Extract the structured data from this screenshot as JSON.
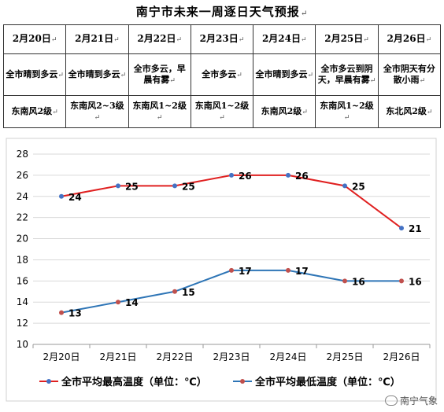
{
  "title": "南宁市未来一周逐日天气预报",
  "paragraph_mark": "↵",
  "forecast": {
    "dates": [
      "2月20日",
      "2月21日",
      "2月22日",
      "2月23日",
      "2月24日",
      "2月25日",
      "2月26日"
    ],
    "weather": [
      "全市晴到多云",
      "全市晴到多云",
      "全市多云，早晨有雾",
      "全市多云",
      "全市晴到多云",
      "全市多云到阴天，早晨有雾",
      "全市阴天有分散小雨"
    ],
    "wind": [
      "东南风2级",
      "东南风2~3级",
      "东南风1~2级",
      "东南风1~2级",
      "东南风2级",
      "东南风1~2级",
      "东北风2级"
    ]
  },
  "chart_data": {
    "type": "line",
    "categories": [
      "2月20日",
      "2月21日",
      "2月22日",
      "2月23日",
      "2月24日",
      "2月25日",
      "2月26日"
    ],
    "series": [
      {
        "name": "全市平均最高温度（单位：℃）",
        "color": "#e02020",
        "marker_color": "#4472c4",
        "values": [
          24,
          25,
          25,
          26,
          26,
          25,
          21
        ]
      },
      {
        "name": "全市平均最低温度（单位：℃）",
        "color": "#2e75b6",
        "marker_color": "#c0504d",
        "values": [
          13,
          14,
          15,
          17,
          17,
          16,
          16
        ]
      }
    ],
    "ylim": [
      10,
      28
    ],
    "yticks": [
      10,
      12,
      14,
      16,
      18,
      20,
      22,
      24,
      26,
      28
    ],
    "grid": true,
    "legend": "bottom"
  },
  "watermark": {
    "text": "南宁气象",
    "icon": "wechat-icon"
  }
}
